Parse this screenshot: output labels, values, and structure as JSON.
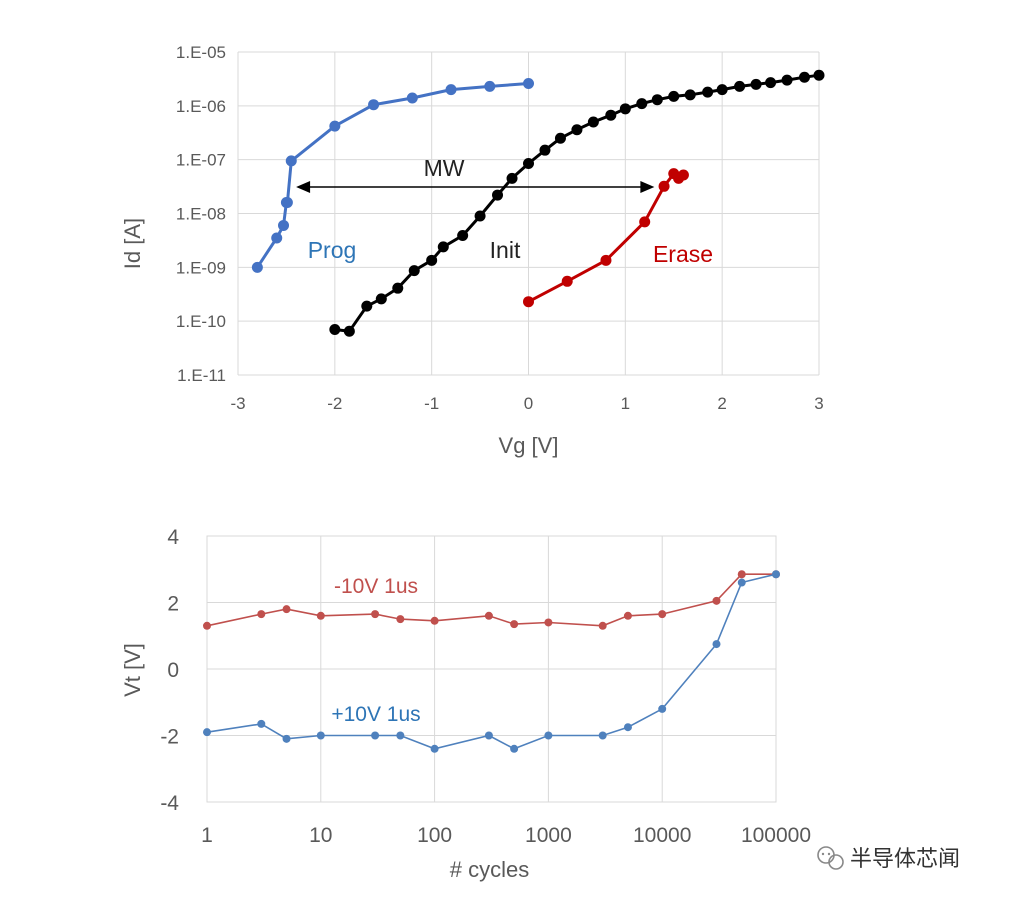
{
  "colors": {
    "prog": "#4472C4",
    "init": "#000000",
    "erase": "#C00000",
    "neg_pulse": "#C0504D",
    "pos_pulse": "#4F81BD",
    "prog_label": "#2E75B6",
    "erase_label": "#C00000",
    "neg_label": "#C0504D",
    "pos_label": "#2E75B6",
    "grid": "#D9D9D9",
    "axis_text": "#595959"
  },
  "watermark": {
    "text": "半导体芯闻",
    "icon": "wechat-icon"
  },
  "chart_data": [
    {
      "type": "line",
      "title": "",
      "xlabel": "Vg [V]",
      "ylabel": "Id [A]",
      "xlim": [
        -3,
        3
      ],
      "x_ticks": [
        "-3",
        "-2",
        "-1",
        "0",
        "1",
        "2",
        "3"
      ],
      "yscale": "log",
      "ylim": [
        1e-11,
        1e-05
      ],
      "y_ticks": [
        "1.E-11",
        "1.E-10",
        "1.E-09",
        "1.E-08",
        "1.E-07",
        "1.E-06",
        "1.E-05"
      ],
      "grid": true,
      "series": [
        {
          "name": "Prog",
          "key": "prog",
          "x": [
            -2.8,
            -2.6,
            -2.53,
            -2.5,
            -2.49,
            -2.45,
            -2.0,
            -1.6,
            -1.2,
            -0.8,
            -0.4,
            0.0
          ],
          "y": [
            1e-09,
            3.5e-09,
            6e-09,
            1.6e-08,
            1.6e-08,
            9.5e-08,
            4.2e-07,
            1.05e-06,
            1.4e-06,
            2e-06,
            2.3e-06,
            2.6e-06
          ]
        },
        {
          "name": "Init",
          "key": "init",
          "x": [
            -2.0,
            -1.85,
            -1.67,
            -1.52,
            -1.35,
            -1.18,
            -1.0,
            -0.88,
            -0.68,
            -0.5,
            -0.32,
            -0.17,
            0.0,
            0.17,
            0.33,
            0.5,
            0.67,
            0.85,
            1.0,
            1.17,
            1.33,
            1.5,
            1.67,
            1.85,
            2.0,
            2.18,
            2.35,
            2.5,
            2.67,
            2.85,
            3.0
          ],
          "y": [
            7e-11,
            6.5e-11,
            1.9e-10,
            2.6e-10,
            4.1e-10,
            8.7e-10,
            1.35e-09,
            2.4e-09,
            3.9e-09,
            9e-09,
            2.2e-08,
            4.5e-08,
            8.5e-08,
            1.5e-07,
            2.5e-07,
            3.6e-07,
            5e-07,
            6.7e-07,
            8.8e-07,
            1.1e-06,
            1.3e-06,
            1.5e-06,
            1.6e-06,
            1.8e-06,
            2e-06,
            2.3e-06,
            2.5e-06,
            2.7e-06,
            3e-06,
            3.4e-06,
            3.7e-06
          ]
        },
        {
          "name": "Erase",
          "key": "erase",
          "x": [
            0.0,
            0.4,
            0.8,
            1.2,
            1.4,
            1.5,
            1.55,
            1.6
          ],
          "y": [
            2.3e-10,
            5.5e-10,
            1.35e-09,
            7e-09,
            3.2e-08,
            5.5e-08,
            4.5e-08,
            5.2e-08
          ]
        }
      ],
      "annotations": {
        "prog": "Prog",
        "init": "Init",
        "erase": "Erase",
        "mw": "MW",
        "mw_arrow_x": [
          -2.4,
          1.3
        ],
        "mw_arrow_y": 3.1e-08
      }
    },
    {
      "type": "line",
      "title": "",
      "xlabel": "# cycles",
      "ylabel": "Vt [V]",
      "xscale": "log",
      "xlim": [
        1,
        100000
      ],
      "x_ticks": [
        "1",
        "10",
        "100",
        "1000",
        "10000",
        "100000"
      ],
      "ylim": [
        -4,
        4
      ],
      "y_ticks": [
        "4",
        "2",
        "0",
        "-2",
        "-4"
      ],
      "grid": true,
      "series": [
        {
          "name": "-10V 1us",
          "key": "neg_pulse",
          "x": [
            1,
            3,
            5,
            10,
            30,
            50,
            100,
            300,
            500,
            1000,
            3000,
            5000,
            10000,
            30000,
            50000,
            100000
          ],
          "y": [
            1.3,
            1.65,
            1.8,
            1.6,
            1.65,
            1.5,
            1.45,
            1.6,
            1.35,
            1.4,
            1.3,
            1.6,
            1.65,
            2.05,
            2.85,
            2.85
          ]
        },
        {
          "name": "+10V 1us",
          "key": "pos_pulse",
          "x": [
            1,
            3,
            5,
            10,
            30,
            50,
            100,
            300,
            500,
            1000,
            3000,
            5000,
            10000,
            30000,
            50000,
            100000
          ],
          "y": [
            -1.9,
            -1.65,
            -2.1,
            -2.0,
            -2.0,
            -2.0,
            -2.4,
            -2.0,
            -2.4,
            -2.0,
            -2.0,
            -1.75,
            -1.2,
            0.75,
            2.6,
            2.85
          ]
        }
      ]
    }
  ]
}
